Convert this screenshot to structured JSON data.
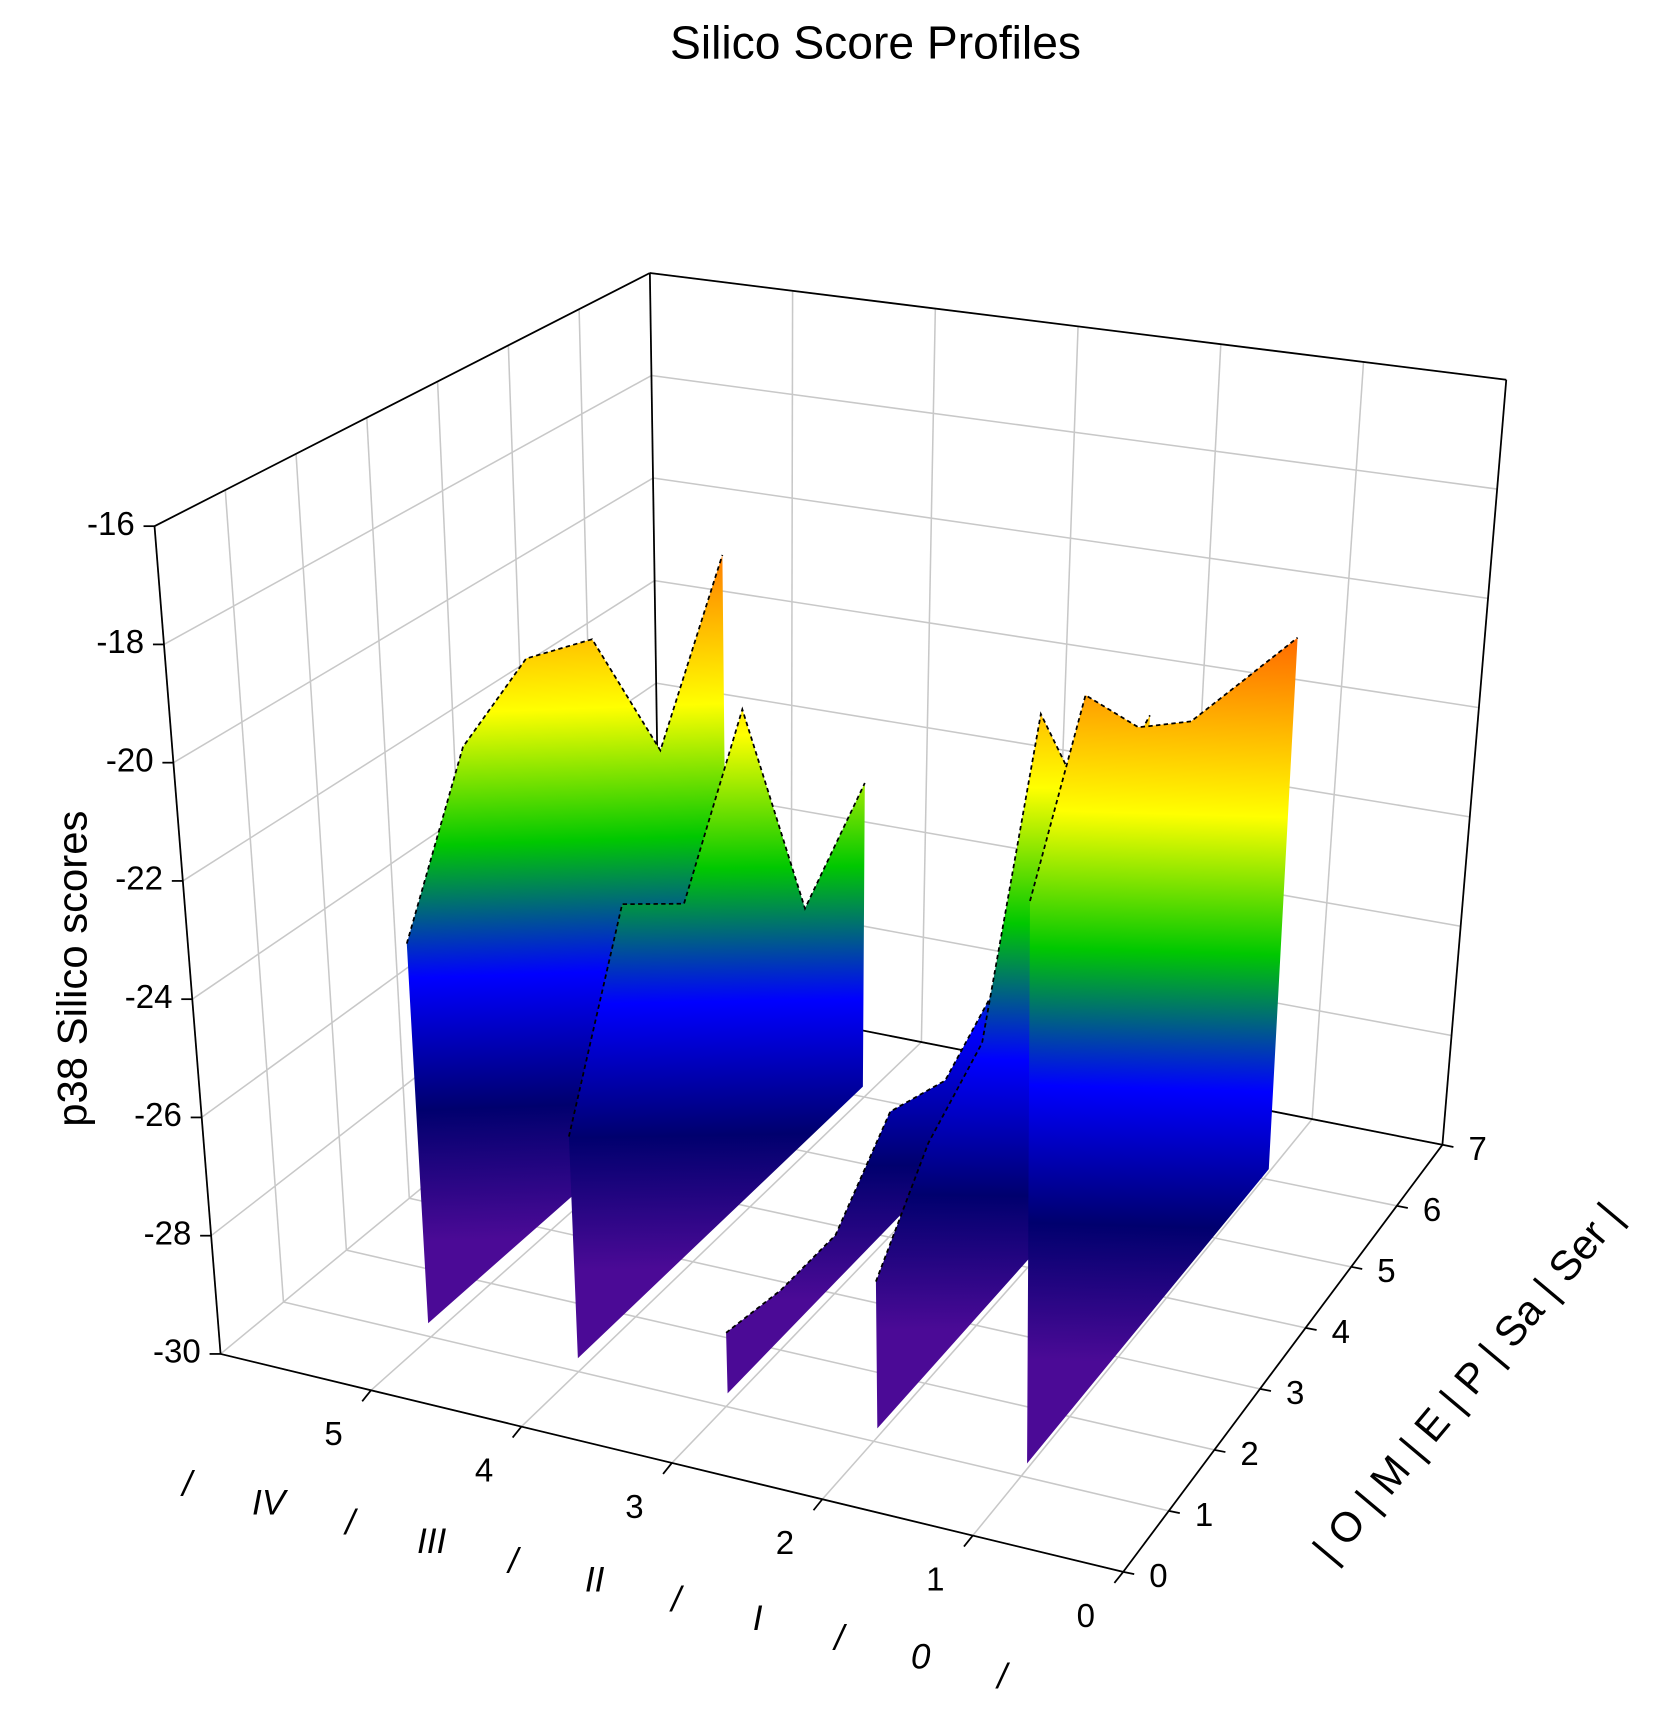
{
  "chart_data": {
    "type": "waterfall3d",
    "title": "Silico Score Profiles",
    "y_label": "p38 Silico scores",
    "x_axis_labels": [
      "/",
      "IV",
      "/",
      "III",
      "/",
      "II",
      "/",
      "I",
      "/",
      "0",
      "/"
    ],
    "depth_axis_label": "| O | M | E | P | Sa | Ser |",
    "xlim": [
      0,
      6
    ],
    "xticks": [
      0,
      1,
      2,
      3,
      4,
      5
    ],
    "depthlim": [
      0,
      7
    ],
    "depthticks": [
      0,
      1,
      2,
      3,
      4,
      5,
      6,
      7
    ],
    "ylim": [
      -30,
      -16
    ],
    "yticks": [
      -30,
      -28,
      -26,
      -24,
      -22,
      -20,
      -18,
      -16
    ],
    "grid": true,
    "baseline": -29.2,
    "colormap": [
      "#4b0a96",
      "#00006e",
      "#0000ff",
      "#00c800",
      "#ffff00",
      "#ff8c00",
      "#ff2000"
    ],
    "series": [
      {
        "values": [
          -22.8,
          -20.2,
          -19.4,
          -19.8,
          -22.6,
          -19.8
        ]
      },
      {
        "values": [
          -25.5,
          -22.4,
          -23.2,
          -20.6,
          -25.0,
          -23.6
        ]
      },
      {
        "values": [
          -28.2,
          -28.4,
          -28.4,
          -27.2,
          -27.6,
          -26.7
        ]
      },
      {
        "values": [
          -26.8,
          -25.4,
          -24.6,
          -19.8,
          -22.5,
          -21.5
        ]
      },
      {
        "values": [
          -20.1,
          -17.5,
          -18.8,
          -19.5,
          -19.6,
          -19.7
        ]
      }
    ]
  }
}
